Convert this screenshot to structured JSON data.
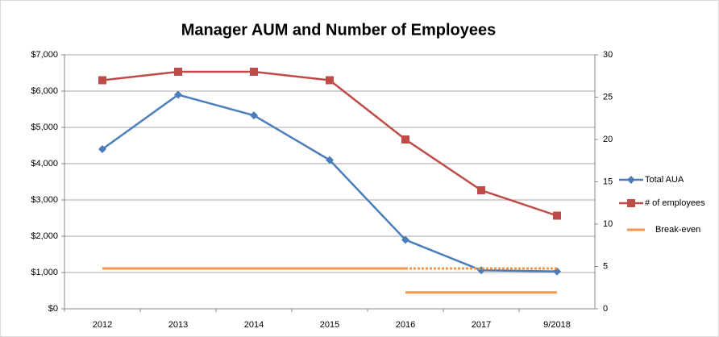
{
  "chart_data": {
    "type": "line",
    "title": "Manager AUM and Number of Employees",
    "categories": [
      "2012",
      "2013",
      "2014",
      "2015",
      "2016",
      "2017",
      "9/2018"
    ],
    "ylim": [
      0,
      7000
    ],
    "yticks": [
      {
        "value": 0,
        "label": "$0"
      },
      {
        "value": 1000,
        "label": "$1,000"
      },
      {
        "value": 2000,
        "label": "$2,000"
      },
      {
        "value": 3000,
        "label": "$3,000"
      },
      {
        "value": 4000,
        "label": "$4,000"
      },
      {
        "value": 5000,
        "label": "$5,000"
      },
      {
        "value": 6000,
        "label": "$6,000"
      },
      {
        "value": 7000,
        "label": "$7,000"
      }
    ],
    "y2lim": [
      0,
      30
    ],
    "y2ticks": [
      0,
      5,
      10,
      15,
      20,
      25,
      30
    ],
    "grid": true,
    "legend": "right",
    "series": [
      {
        "name": "Total AUA",
        "color": "#4a7ebb",
        "marker": "diamond",
        "axis": "y",
        "values": [
          4400,
          5900,
          5330,
          4100,
          1900,
          1060,
          1030
        ]
      },
      {
        "name": "# of employees",
        "color": "#be4b48",
        "marker": "square",
        "axis": "y2",
        "values": [
          27,
          28,
          28,
          27,
          20,
          14,
          11
        ]
      },
      {
        "name": "Break-even",
        "color": "#f79646",
        "marker": "none",
        "axis": "y",
        "dash_from_index": 4,
        "values": [
          1110,
          1110,
          1110,
          1110,
          1110,
          1110,
          1110
        ]
      },
      {
        "color": "#f79646",
        "marker": "none",
        "axis": "y",
        "values": [
          null,
          null,
          null,
          null,
          450,
          450,
          450
        ]
      }
    ]
  }
}
